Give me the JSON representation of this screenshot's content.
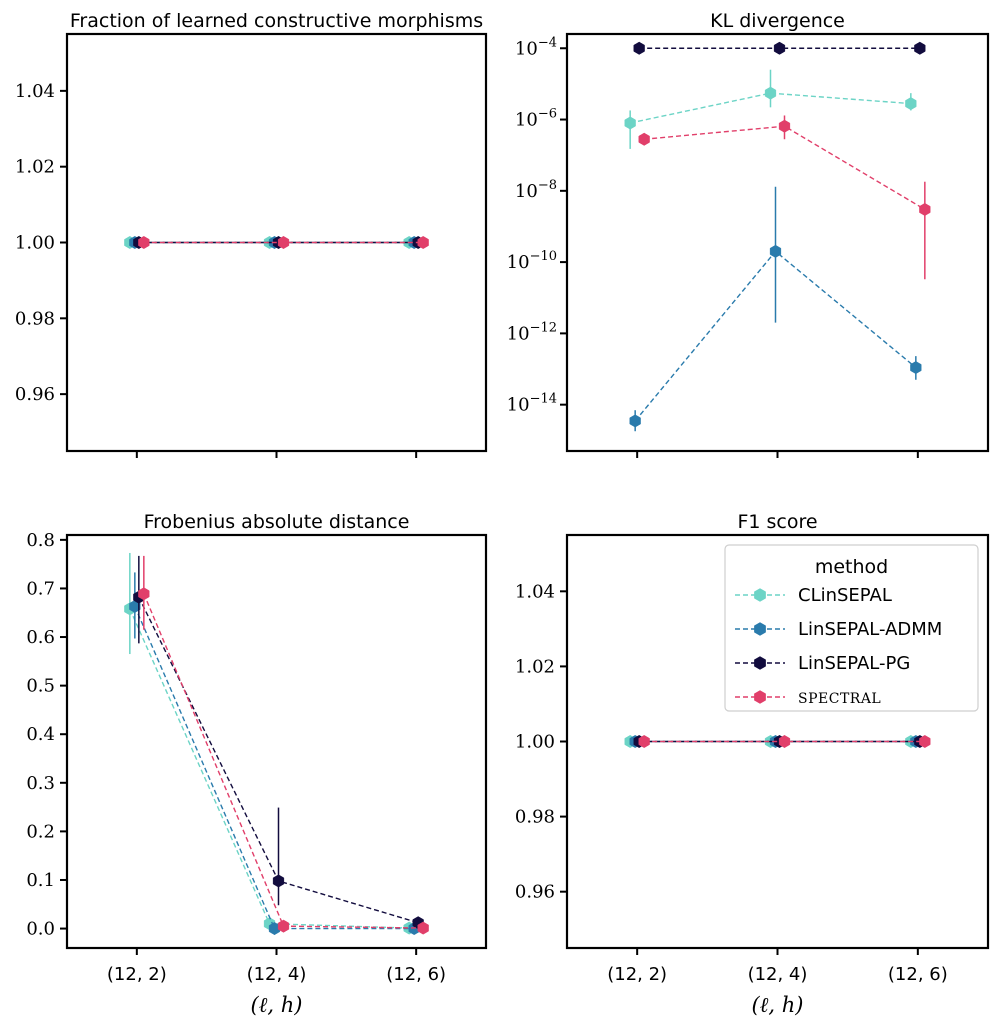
{
  "colors": {
    "CLinSEPAL": "#6cd4c6",
    "LinSEPAL-ADMM": "#2a7bac",
    "LinSEPAL-PG": "#120c3e",
    "SPECTRAL": "#e13f6a"
  },
  "legend": {
    "title": "method",
    "entries": [
      "CLinSEPAL",
      "LinSEPAL-ADMM",
      "LinSEPAL-PG",
      "SPECTRAL"
    ]
  },
  "chart_data": [
    {
      "id": "fraction",
      "type": "line",
      "title": "Fraction of learned constructive morphisms",
      "xlabel": "",
      "ylabel": "",
      "categories": [
        "(12, 2)",
        "(12, 4)",
        "(12, 6)"
      ],
      "show_xticklabels": false,
      "yscale": "linear",
      "ylim": [
        0.945,
        1.055
      ],
      "yticks": [
        0.96,
        0.98,
        1.0,
        1.02,
        1.04
      ],
      "ytick_labels": [
        "0.96",
        "0.98",
        "1.00",
        "1.02",
        "1.04"
      ],
      "series": [
        {
          "name": "CLinSEPAL",
          "values": [
            1.0,
            1.0,
            1.0
          ],
          "err_low": [
            1.0,
            1.0,
            1.0
          ],
          "err_high": [
            1.0,
            1.0,
            1.0
          ]
        },
        {
          "name": "LinSEPAL-ADMM",
          "values": [
            1.0,
            1.0,
            1.0
          ],
          "err_low": [
            1.0,
            1.0,
            1.0
          ],
          "err_high": [
            1.0,
            1.0,
            1.0
          ]
        },
        {
          "name": "LinSEPAL-PG",
          "values": [
            1.0,
            1.0,
            1.0
          ],
          "err_low": [
            1.0,
            1.0,
            1.0
          ],
          "err_high": [
            1.0,
            1.0,
            1.0
          ]
        },
        {
          "name": "SPECTRAL",
          "values": [
            1.0,
            1.0,
            1.0
          ],
          "err_low": [
            1.0,
            1.0,
            1.0
          ],
          "err_high": [
            1.0,
            1.0,
            1.0
          ]
        }
      ]
    },
    {
      "id": "kl",
      "type": "line",
      "title": "KL divergence",
      "xlabel": "",
      "ylabel": "",
      "categories": [
        "(12, 2)",
        "(12, 4)",
        "(12, 6)"
      ],
      "show_xticklabels": false,
      "yscale": "log",
      "ylim_log10": [
        -15.3,
        -3.6
      ],
      "yticks_exp": [
        -14,
        -12,
        -10,
        -8,
        -6,
        -4
      ],
      "ytick_base": "10",
      "ytick_exponents": [
        "−14",
        "−12",
        "−10",
        "−8",
        "−6",
        "−4"
      ],
      "series": [
        {
          "name": "CLinSEPAL",
          "values": [
            8e-07,
            5.5e-06,
            2.8e-06
          ],
          "err_low": [
            1.5e-07,
            2.2e-06,
            1.8e-06
          ],
          "err_high": [
            1.8e-06,
            2.5e-05,
            5.5e-06
          ]
        },
        {
          "name": "LinSEPAL-ADMM",
          "values": [
            3.5e-15,
            2e-10,
            1.1e-13
          ],
          "err_low": [
            1.8e-15,
            2e-12,
            5e-14
          ],
          "err_high": [
            7e-15,
            1.3e-08,
            2.3e-13
          ]
        },
        {
          "name": "LinSEPAL-PG",
          "values": [
            0.0001,
            0.0001,
            0.0001
          ],
          "err_low": [
            0.0001,
            0.0001,
            0.0001
          ],
          "err_high": [
            0.0001,
            0.0001,
            0.0001
          ]
        },
        {
          "name": "SPECTRAL",
          "values": [
            2.8e-07,
            6.5e-07,
            3e-09
          ],
          "err_low": [
            2.8e-07,
            2.8e-07,
            3.3e-11
          ],
          "err_high": [
            2.8e-07,
            1.3e-06,
            1.8e-08
          ]
        }
      ]
    },
    {
      "id": "frobenius",
      "type": "line",
      "title": "Frobenius absolute distance",
      "xlabel": "(ℓ, h)",
      "ylabel": "",
      "categories": [
        "(12, 2)",
        "(12, 4)",
        "(12, 6)"
      ],
      "show_xticklabels": true,
      "yscale": "linear",
      "ylim": [
        -0.04,
        0.81
      ],
      "yticks": [
        0.0,
        0.1,
        0.2,
        0.3,
        0.4,
        0.5,
        0.6,
        0.7,
        0.8
      ],
      "ytick_labels": [
        "0.0",
        "0.1",
        "0.2",
        "0.3",
        "0.4",
        "0.5",
        "0.6",
        "0.7",
        "0.8"
      ],
      "series": [
        {
          "name": "CLinSEPAL",
          "values": [
            0.658,
            0.01,
            0.001
          ],
          "err_low": [
            0.565,
            0.005,
            0.0
          ],
          "err_high": [
            0.773,
            0.015,
            0.003
          ]
        },
        {
          "name": "LinSEPAL-ADMM",
          "values": [
            0.663,
            0.0,
            0.0
          ],
          "err_low": [
            0.597,
            0.0,
            0.0
          ],
          "err_high": [
            0.733,
            0.0,
            0.0
          ]
        },
        {
          "name": "LinSEPAL-PG",
          "values": [
            0.682,
            0.098,
            0.012
          ],
          "err_low": [
            0.587,
            0.048,
            0.007
          ],
          "err_high": [
            0.767,
            0.249,
            0.017
          ]
        },
        {
          "name": "SPECTRAL",
          "values": [
            0.689,
            0.005,
            0.001
          ],
          "err_low": [
            0.615,
            0.004,
            0.0
          ],
          "err_high": [
            0.767,
            0.006,
            0.002
          ]
        }
      ]
    },
    {
      "id": "f1",
      "type": "line",
      "title": "F1 score",
      "xlabel": "(ℓ, h)",
      "ylabel": "",
      "categories": [
        "(12, 2)",
        "(12, 4)",
        "(12, 6)"
      ],
      "show_xticklabels": true,
      "yscale": "linear",
      "ylim": [
        0.945,
        1.055
      ],
      "yticks": [
        0.96,
        0.98,
        1.0,
        1.02,
        1.04
      ],
      "ytick_labels": [
        "0.96",
        "0.98",
        "1.00",
        "1.02",
        "1.04"
      ],
      "legend_position": "top-right",
      "series": [
        {
          "name": "CLinSEPAL",
          "values": [
            1.0,
            1.0,
            1.0
          ],
          "err_low": [
            1.0,
            1.0,
            1.0
          ],
          "err_high": [
            1.0,
            1.0,
            1.0
          ]
        },
        {
          "name": "LinSEPAL-ADMM",
          "values": [
            1.0,
            1.0,
            1.0
          ],
          "err_low": [
            1.0,
            1.0,
            1.0
          ],
          "err_high": [
            1.0,
            1.0,
            1.0
          ]
        },
        {
          "name": "LinSEPAL-PG",
          "values": [
            1.0,
            1.0,
            1.0
          ],
          "err_low": [
            1.0,
            1.0,
            1.0
          ],
          "err_high": [
            1.0,
            1.0,
            1.0
          ]
        },
        {
          "name": "SPECTRAL",
          "values": [
            1.0,
            1.0,
            1.0
          ],
          "err_low": [
            1.0,
            1.0,
            1.0
          ],
          "err_high": [
            1.0,
            1.0,
            1.0
          ]
        }
      ]
    }
  ]
}
